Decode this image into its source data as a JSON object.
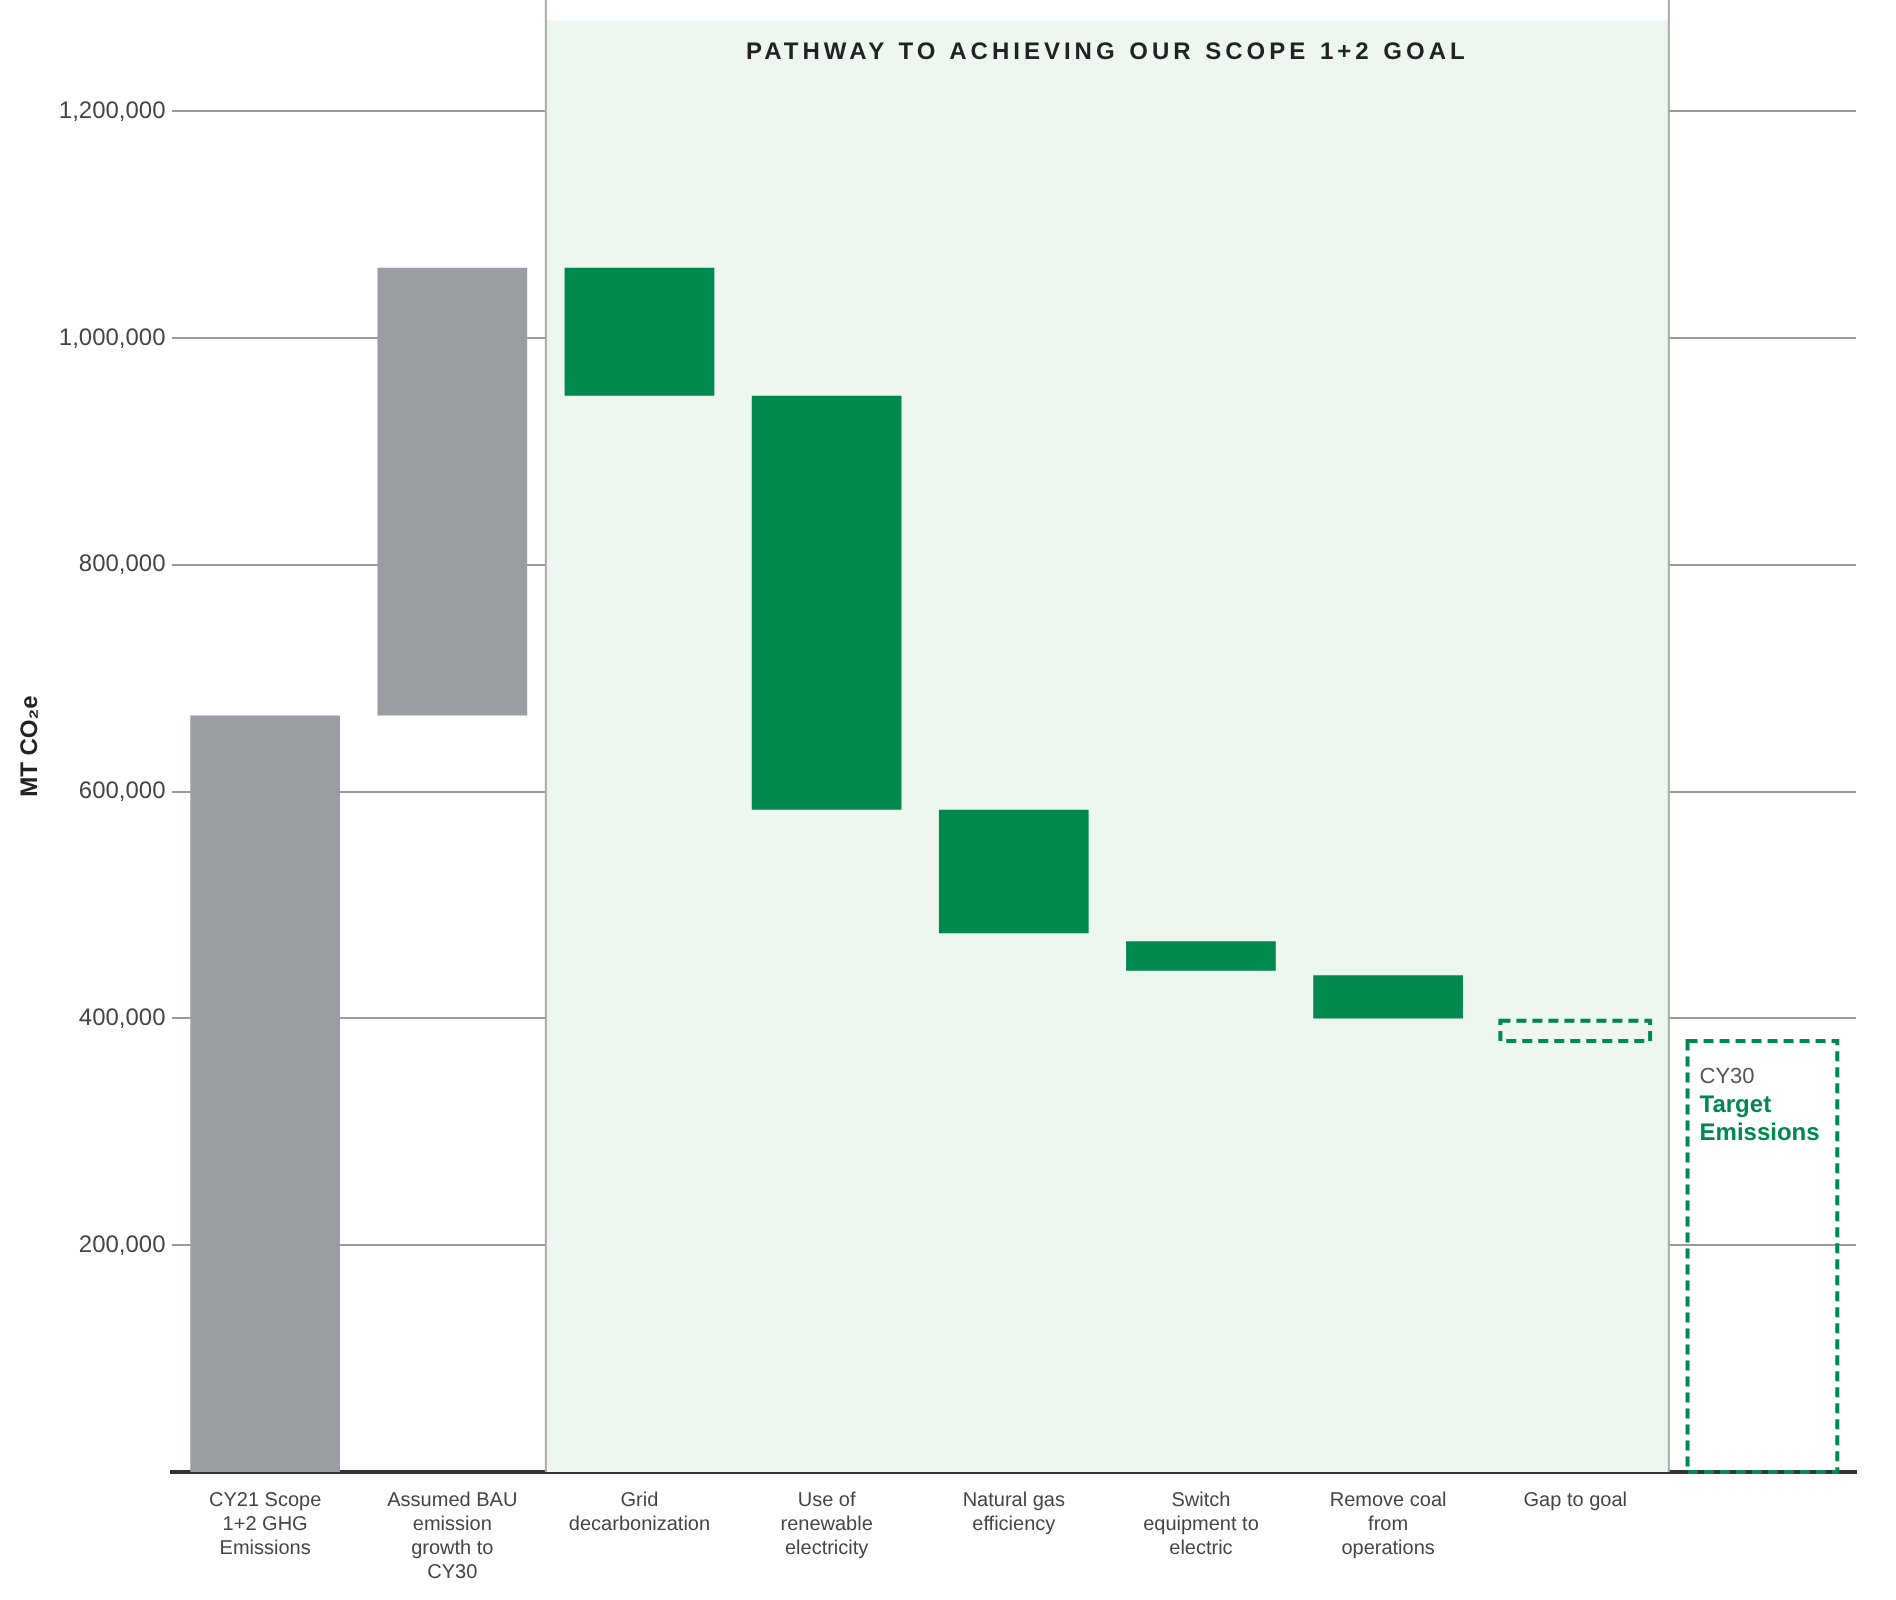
{
  "chart_data": {
    "type": "bar",
    "ylabel": "MT CO₂e",
    "categories": [
      "CY21 Scope 1+2 GHG Emissions",
      "Assumed BAU emission growth to CY30",
      "Grid decarbonization",
      "Use of renewable electricity",
      "Natural gas efficiency",
      "Switch equipment to electric",
      "Remove coal from operations",
      "Gap to goal",
      null
    ],
    "series": [
      {
        "colors": [
          "#9a9ea3",
          "#9a9ea3",
          "#00894f",
          "#00894f",
          "#00894f",
          "#00894f",
          "#00894f",
          "#00894f",
          "#00894f"
        ],
        "base": [
          0,
          667000,
          949000,
          584000,
          475000,
          442000,
          400000,
          null,
          null
        ],
        "values": [
          667000,
          395000,
          113000,
          365000,
          109000,
          26000,
          38000,
          null,
          null
        ]
      },
      {
        "color": "#00894f",
        "line_style": "dashed",
        "base": [
          null,
          null,
          null,
          null,
          null,
          null,
          null,
          380000,
          0
        ],
        "values": [
          null,
          null,
          null,
          null,
          null,
          null,
          null,
          18000,
          380000
        ]
      }
    ],
    "ylim": [
      0,
      1280000
    ],
    "yticks": [
      {
        "value": 200000,
        "label": "200,000"
      },
      {
        "value": 400000,
        "label": "400,000"
      },
      {
        "value": 600000,
        "label": "600,000"
      },
      {
        "value": 800000,
        "label": "800,000"
      },
      {
        "value": 1000000,
        "label": "1,000,000"
      },
      {
        "value": 1200000,
        "label": "1,200,000"
      }
    ],
    "grid": "y",
    "legend": false,
    "bands": [
      {
        "axis": "x",
        "from": "Grid decarbonization",
        "to": "Gap to goal",
        "label": "PATHWAY TO ACHIEVING OUR SCOPE 1+2 GOAL",
        "color": "#eef7ef"
      }
    ],
    "annotations": [
      "CY30",
      "Target Emissions"
    ]
  }
}
